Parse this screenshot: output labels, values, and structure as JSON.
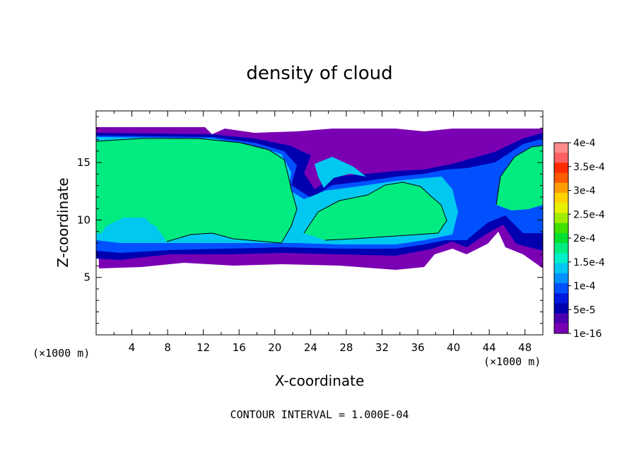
{
  "chart_data": {
    "type": "heatmap",
    "title": "density of cloud",
    "xlabel": "X-coordinate",
    "ylabel": "Z-coordinate",
    "x_unit_left": "(×1000 m)",
    "x_unit_right": "(×1000 m)",
    "xlim": [
      0,
      50
    ],
    "ylim": [
      0,
      19.5
    ],
    "xticks": [
      4,
      8,
      12,
      16,
      20,
      24,
      28,
      32,
      36,
      40,
      44,
      48
    ],
    "xtick_labels": [
      "4",
      "8",
      "12",
      "16",
      "20",
      "24",
      "28",
      "32",
      "36",
      "40",
      "44",
      "48"
    ],
    "yticks": [
      5,
      10,
      15
    ],
    "ytick_labels": [
      "5",
      "10",
      "15"
    ],
    "grid": false,
    "footer": "CONTOUR INTERVAL = 1.000E-04",
    "colorbar": {
      "labels": [
        "4e-4",
        "3.5e-4",
        "3e-4",
        "2.5e-4",
        "2e-4",
        "1.5e-4",
        "1e-4",
        "5e-5",
        "1e-16"
      ],
      "colors": [
        "#ff8c8c",
        "#ff6060",
        "#ff2b00",
        "#ff5a00",
        "#ff9d00",
        "#ffd200",
        "#e8f000",
        "#a0ec00",
        "#40e000",
        "#00e030",
        "#00ec80",
        "#00f0c8",
        "#00c8f0",
        "#0090ff",
        "#0050ff",
        "#0018e0",
        "#0000b0",
        "#4a00b0",
        "#7a00b4"
      ]
    },
    "cloud_layer": {
      "z_base_approx": 6.3,
      "z_top_approx": 18.2,
      "peak_density_approx": 0.00016
    }
  }
}
